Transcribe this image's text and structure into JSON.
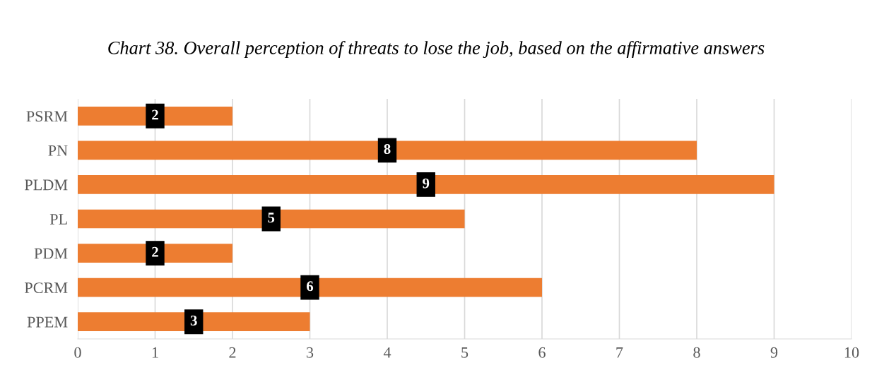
{
  "chart_data": {
    "type": "bar",
    "orientation": "horizontal",
    "title": "Chart 38. Overall perception of threats to lose the job, based on the affirmative answers",
    "categories": [
      "PSRM",
      "PN",
      "PLDM",
      "PL",
      "PDM",
      "PCRM",
      "PPEM"
    ],
    "values": [
      2,
      8,
      9,
      5,
      2,
      6,
      3
    ],
    "color": "#ed7d31",
    "xlim": [
      0,
      10
    ],
    "xticks": [
      0,
      1,
      2,
      3,
      4,
      5,
      6,
      7,
      8,
      9,
      10
    ],
    "grid": "x",
    "data_labels": true
  }
}
